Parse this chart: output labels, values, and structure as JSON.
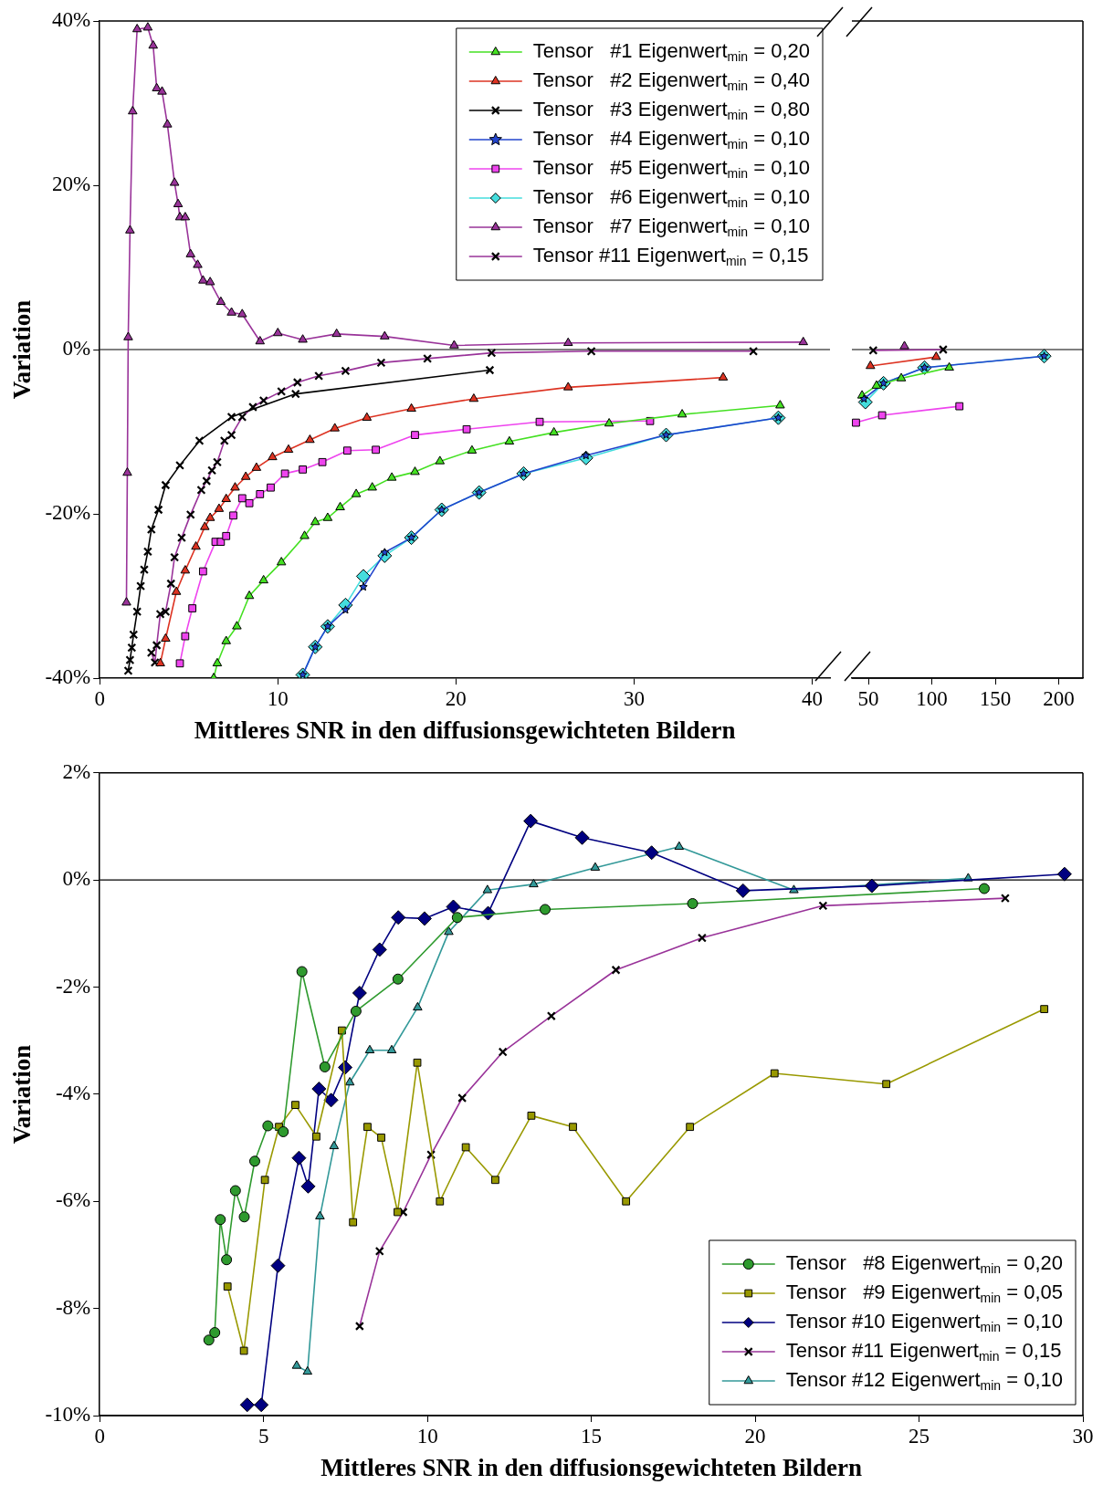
{
  "chart_data": [
    {
      "type": "line",
      "xlabel": "Mittleres SNR in den diffusionsgewichteten Bildern",
      "ylabel": "Variation",
      "xlim": [
        0,
        41
      ],
      "xticks": [
        0,
        10,
        20,
        30,
        40
      ],
      "ylim": [
        -40,
        40
      ],
      "yticks": [
        {
          "value": -40,
          "label": "-40%"
        },
        {
          "value": -20,
          "label": "-20%"
        },
        {
          "value": 0,
          "label": "0%"
        },
        {
          "value": 20,
          "label": "20%"
        },
        {
          "value": 40,
          "label": "40%"
        }
      ],
      "legend": "top right",
      "ref_lines": [
        {
          "axis": "y",
          "value": 0,
          "color": "#000000"
        }
      ],
      "series": [
        {
          "name": "Tensor   #1 Eigenwert$_{min}$ = 0,20",
          "color": "#44e022",
          "marker": "triangle",
          "x": [
            6.4,
            6.6,
            7.1,
            7.7,
            8.4,
            9.2,
            10.2,
            11.5,
            12.1,
            12.8,
            13.5,
            14.4,
            15.3,
            16.4,
            17.7,
            19.1,
            20.9,
            23.0,
            25.5,
            28.6,
            32.7,
            38.2
          ],
          "values": [
            -40,
            -38.2,
            -35.5,
            -33.7,
            -30,
            -28.1,
            -25.9,
            -22.7,
            -21.0,
            -20.5,
            -19.2,
            -17.6,
            -16.8,
            -15.6,
            -14.9,
            -13.6,
            -12.3,
            -11.2,
            -10.1,
            -9.0,
            -7.9,
            -6.8
          ]
        },
        {
          "name": "Tensor   #2 Eigenwert$_{min}$ = 0,40",
          "color": "#dd3322",
          "marker": "triangle",
          "x": [
            3.4,
            3.7,
            4.3,
            4.8,
            5.4,
            5.9,
            6.2,
            6.7,
            7.1,
            7.6,
            8.2,
            8.8,
            9.7,
            10.6,
            11.8,
            13.2,
            15.0,
            17.5,
            21.0,
            26.3,
            35.0
          ],
          "values": [
            -38.2,
            -35.2,
            -29.5,
            -26.9,
            -24,
            -21.6,
            -20.5,
            -19.4,
            -18.2,
            -16.8,
            -15.5,
            -14.4,
            -13.1,
            -12.2,
            -11.0,
            -9.6,
            -8.3,
            -7.2,
            -6.0,
            -4.6,
            -3.4
          ]
        },
        {
          "name": "Tensor   #3 Eigenwert$_{min}$ = 0,80",
          "color": "#000000",
          "marker": "cross",
          "x": [
            1.6,
            1.7,
            1.8,
            1.9,
            2.1,
            2.3,
            2.5,
            2.7,
            2.9,
            3.3,
            3.7,
            4.5,
            5.6,
            7.4,
            11.0,
            21.9
          ],
          "values": [
            -39.1,
            -37.8,
            -36.3,
            -34.7,
            -31.9,
            -28.8,
            -26.8,
            -24.6,
            -21.9,
            -19.5,
            -16.5,
            -14.1,
            -11.1,
            -8.2,
            -5.4,
            -2.5
          ]
        },
        {
          "name": "Tensor   #4 Eigenwert$_{min}$ = 0,10",
          "color": "#2244cc",
          "marker": "star",
          "x": [
            11.4,
            12.1,
            12.8,
            13.8,
            14.8,
            16.0,
            17.5,
            19.2,
            21.3,
            23.8,
            27.3,
            31.8,
            38.1
          ],
          "values": [
            -39.6,
            -36.2,
            -33.7,
            -31.7,
            -28.9,
            -24.7,
            -22.9,
            -19.5,
            -17.4,
            -15.1,
            -12.9,
            -10.4,
            -8.3
          ]
        },
        {
          "name": "Tensor   #5 Eigenwert$_{min}$ = 0,10",
          "color": "#ee44ee",
          "marker": "square",
          "x": [
            4.5,
            4.8,
            5.2,
            5.8,
            6.5,
            6.8,
            7.1,
            7.5,
            8.0,
            8.4,
            9.0,
            9.6,
            10.4,
            11.4,
            12.5,
            13.9,
            15.5,
            17.7,
            20.6,
            24.7,
            30.9
          ],
          "values": [
            -38.2,
            -34.9,
            -31.5,
            -27.0,
            -23.4,
            -23.4,
            -22.7,
            -20.2,
            -18.1,
            -18.7,
            -17.6,
            -16.8,
            -15.1,
            -14.6,
            -13.7,
            -12.3,
            -12.2,
            -10.4,
            -9.7,
            -8.8,
            -8.7
          ]
        },
        {
          "name": "Tensor   #6 Eigenwert$_{min}$ = 0,10",
          "color": "#44dddd",
          "marker": "diamond",
          "x": [
            11.4,
            12.1,
            12.8,
            13.8,
            14.8,
            16.0,
            17.5,
            19.2,
            21.3,
            23.8,
            27.3,
            31.8,
            38.1
          ],
          "values": [
            -39.6,
            -36.2,
            -33.7,
            -31.1,
            -27.6,
            -25.1,
            -22.9,
            -19.5,
            -17.4,
            -15.1,
            -13.2,
            -10.4,
            -8.3
          ]
        },
        {
          "name": "Tensor   #7 Eigenwert$_{min}$ = 0,10",
          "color": "#993399",
          "marker": "triangle",
          "x": [
            1.5,
            1.55,
            1.6,
            1.7,
            1.85,
            2.1,
            2.7,
            3.0,
            3.2,
            3.5,
            3.8,
            4.2,
            4.4,
            4.5,
            4.8,
            5.1,
            5.5,
            5.8,
            6.2,
            6.8,
            7.4,
            8.0,
            9.0,
            10.0,
            11.4,
            13.3,
            16.0,
            19.9,
            26.3,
            39.5
          ],
          "values": [
            -30.8,
            -15.0,
            1.5,
            14.5,
            29.0,
            39.0,
            39.2,
            37.0,
            31.8,
            31.4,
            27.4,
            20.3,
            17.7,
            16.1,
            16.1,
            11.6,
            10.3,
            8.4,
            8.2,
            5.8,
            4.5,
            4.3,
            1.0,
            2.0,
            1.2,
            1.9,
            1.6,
            0.5,
            0.8,
            0.9
          ]
        },
        {
          "name": "Tensor #11 Eigenwert$_{min}$ = 0,15",
          "color": "#993399",
          "marker": "cross",
          "x": [
            2.9,
            3.1,
            3.2,
            3.4,
            3.7,
            4.0,
            4.2,
            4.6,
            5.1,
            5.7,
            6.0,
            6.3,
            6.6,
            7.0,
            7.4,
            8.0,
            8.6,
            9.2,
            10.2,
            11.1,
            12.3,
            13.8,
            15.8,
            18.4,
            22.0,
            27.6,
            36.7
          ],
          "values": [
            -36.9,
            -38.1,
            -36.0,
            -32.2,
            -31.9,
            -28.5,
            -25.3,
            -22.9,
            -20.1,
            -17.1,
            -16.0,
            -14.7,
            -13.7,
            -11.1,
            -10.4,
            -8.2,
            -7.0,
            -6.2,
            -5.1,
            -4.0,
            -3.2,
            -2.6,
            -1.6,
            -1.1,
            -0.4,
            -0.2,
            -0.2
          ]
        }
      ]
    },
    {
      "type": "line",
      "xlim": [
        37,
        219
      ],
      "xticks": [
        50,
        100,
        150,
        200
      ],
      "ylim": [
        -40,
        40
      ],
      "tick_labels": "x",
      "ref_lines": [
        {
          "axis": "y",
          "value": 0,
          "color": "#000000"
        }
      ],
      "series": [
        {
          "color": "#44e022",
          "marker": "triangle",
          "x": [
            45.0,
            56.4,
            75.9,
            113.7
          ],
          "values": [
            -5.6,
            -4.4,
            -3.5,
            -2.2
          ]
        },
        {
          "color": "#dd3322",
          "marker": "triangle",
          "x": [
            51.6,
            103.4
          ],
          "values": [
            -2.0,
            -0.9
          ]
        },
        {
          "color": "#2244cc",
          "marker": "star",
          "x": [
            46.5,
            61.9,
            94.2,
            188.5
          ],
          "values": [
            -6.0,
            -4.1,
            -2.2,
            -0.8
          ]
        },
        {
          "color": "#ee44ee",
          "marker": "square",
          "x": [
            40.2,
            60.8,
            121.7
          ],
          "values": [
            -8.9,
            -8.0,
            -6.9
          ]
        },
        {
          "color": "#44dddd",
          "marker": "diamond",
          "x": [
            47.6,
            61.9,
            94.2,
            188.5
          ],
          "values": [
            -6.4,
            -4.1,
            -2.2,
            -0.8
          ]
        },
        {
          "color": "#993399",
          "marker": "triangle",
          "x": [
            78.4
          ],
          "values": [
            0.4
          ]
        },
        {
          "color": "#993399",
          "marker": "cross",
          "x": [
            53.8,
            108.9
          ],
          "values": [
            -0.1,
            0
          ]
        }
      ]
    },
    {
      "type": "line",
      "xlabel": "Mittleres SNR in den diffusionsgewichteten Bildern",
      "ylabel": "Variation",
      "xlim": [
        0,
        30
      ],
      "xticks": [
        0,
        5,
        10,
        15,
        20,
        25,
        30
      ],
      "ylim": [
        -10,
        2
      ],
      "yticks": [
        {
          "value": -10,
          "label": "-10%"
        },
        {
          "value": -8,
          "label": "-8%"
        },
        {
          "value": -6,
          "label": "-6%"
        },
        {
          "value": -4,
          "label": "-4%"
        },
        {
          "value": -2,
          "label": "-2%"
        },
        {
          "value": 0,
          "label": "0%"
        },
        {
          "value": 2,
          "label": "2%"
        }
      ],
      "legend": "bottom right",
      "ref_lines": [
        {
          "axis": "y",
          "value": 0,
          "color": "#000000"
        }
      ],
      "series": [
        {
          "name": "Tensor   #8 Eigenwert$_{min}$ = 0,20",
          "color": "#2e9a2e",
          "marker": "circle",
          "x": [
            3.33,
            3.51,
            3.68,
            3.87,
            4.14,
            4.41,
            4.73,
            5.13,
            5.6,
            6.17,
            6.87,
            7.82,
            9.1,
            10.91,
            13.59,
            18.09,
            26.99
          ],
          "values": [
            -8.59,
            -8.45,
            -6.34,
            -7.09,
            -5.8,
            -6.29,
            -5.25,
            -4.59,
            -4.7,
            -1.71,
            -3.49,
            -2.45,
            -1.85,
            -0.7,
            -0.55,
            -0.44,
            -0.16
          ]
        },
        {
          "name": "Tensor   #9 Eigenwert$_{min}$ = 0,05",
          "color": "#999900",
          "marker": "square",
          "x": [
            3.9,
            4.4,
            5.04,
            5.47,
            5.97,
            6.61,
            7.39,
            7.73,
            8.17,
            8.59,
            9.09,
            9.69,
            10.38,
            11.17,
            12.07,
            13.17,
            14.44,
            16.06,
            18.01,
            20.59,
            24.0,
            28.82
          ],
          "values": [
            -7.59,
            -8.79,
            -5.6,
            -4.61,
            -4.2,
            -4.79,
            -2.81,
            -6.39,
            -4.61,
            -4.81,
            -6.2,
            -3.41,
            -6.0,
            -4.99,
            -5.6,
            -4.4,
            -4.61,
            -6.0,
            -4.61,
            -3.61,
            -3.81,
            -2.41
          ]
        },
        {
          "name": "Tensor #10 Eigenwert$_{min}$ = 0,10",
          "color": "#000080",
          "marker": "diamond",
          "x": [
            4.5,
            4.93,
            5.44,
            6.08,
            6.36,
            6.69,
            7.06,
            7.49,
            7.93,
            8.54,
            9.11,
            9.91,
            10.79,
            11.85,
            13.15,
            14.72,
            16.84,
            19.63,
            23.56,
            29.44
          ],
          "values": [
            -9.8,
            -9.8,
            -7.2,
            -5.19,
            -5.72,
            -3.9,
            -4.11,
            -3.5,
            -2.11,
            -1.3,
            -0.7,
            -0.72,
            -0.5,
            -0.62,
            1.1,
            0.79,
            0.51,
            -0.2,
            -0.11,
            0.11
          ]
        },
        {
          "name": "Tensor #11 Eigenwert$_{min}$ = 0,15",
          "color": "#993399",
          "marker": "cross",
          "x": [
            7.93,
            8.54,
            9.26,
            10.11,
            11.06,
            12.3,
            13.78,
            15.75,
            18.38,
            22.07,
            27.63
          ],
          "values": [
            -8.33,
            -6.93,
            -6.2,
            -5.13,
            -4.07,
            -3.21,
            -2.54,
            -1.68,
            -1.08,
            -0.48,
            -0.34
          ]
        },
        {
          "name": "Tensor #12 Eigenwert$_{min}$ = 0,10",
          "color": "#339999",
          "marker": "triangle",
          "x": [
            6.01,
            6.34,
            6.72,
            7.15,
            7.63,
            8.24,
            8.91,
            9.7,
            10.65,
            11.83,
            13.24,
            15.12,
            17.68,
            21.18,
            26.5
          ],
          "values": [
            -9.07,
            -9.18,
            -6.28,
            -4.97,
            -3.78,
            -3.18,
            -3.18,
            -2.38,
            -0.97,
            -0.19,
            -0.08,
            0.23,
            0.62,
            -0.19,
            0.03
          ]
        }
      ]
    }
  ]
}
